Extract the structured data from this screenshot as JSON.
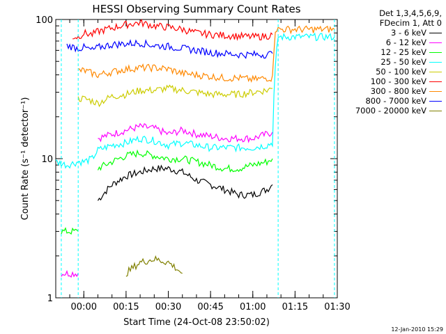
{
  "chart_data": {
    "type": "line",
    "title": "HESSI Observing Summary Count Rates",
    "xlabel": "Start Time (24-Oct-08 23:50:02)",
    "ylabel": "Count Rate (s⁻¹ detector⁻¹)",
    "y_scale": "log",
    "ylim": [
      1,
      100
    ],
    "xlim": [
      "23:50:02",
      "01:30:00"
    ],
    "x_ticks": [
      "00:00",
      "00:15",
      "00:30",
      "00:45",
      "01:00",
      "01:15",
      "01:30"
    ],
    "y_ticks": [
      "1",
      "10",
      "100"
    ],
    "legend_header": [
      "Det 1,3,4,5,6,9,",
      "FDecim 1, Att 0"
    ],
    "legend_position": "top-right, outside plot",
    "grid": false,
    "series": [
      {
        "name": "3 - 6 keV",
        "color": "#000000",
        "x": [
          "23:52",
          "23:58",
          "00:00",
          "00:05",
          "00:10",
          "00:15",
          "00:20",
          "00:25",
          "00:30",
          "00:35",
          "00:40",
          "00:45",
          "00:50",
          "00:55",
          "01:00",
          "01:05",
          "01:07"
        ],
        "y": [
          null,
          null,
          null,
          5.0,
          6.5,
          7.5,
          8.0,
          8.5,
          8.5,
          8.0,
          7.0,
          6.5,
          6.0,
          5.5,
          5.5,
          6.0,
          6.5
        ]
      },
      {
        "name": "6 - 12 keV",
        "color": "#ff00ff",
        "x": [
          "23:52",
          "23:55",
          "23:58",
          "00:00",
          "00:05",
          "00:10",
          "00:15",
          "00:20",
          "00:25",
          "00:30",
          "00:35",
          "00:40",
          "00:45",
          "00:50",
          "00:55",
          "01:00",
          "01:05",
          "01:07"
        ],
        "y": [
          1.5,
          1.5,
          1.5,
          null,
          14.0,
          15.0,
          16.0,
          17.0,
          16.5,
          15.0,
          16.0,
          15.0,
          14.5,
          14.0,
          14.0,
          14.0,
          15.0,
          15.5
        ]
      },
      {
        "name": "12 - 25 keV",
        "color": "#00ff00",
        "x": [
          "23:52",
          "23:55",
          "23:58",
          "00:00",
          "00:05",
          "00:10",
          "00:15",
          "00:20",
          "00:25",
          "00:30",
          "00:35",
          "00:40",
          "00:45",
          "00:50",
          "00:55",
          "01:00",
          "01:05",
          "01:07"
        ],
        "y": [
          3.0,
          3.0,
          3.0,
          null,
          8.5,
          9.5,
          10.5,
          11.0,
          10.5,
          10.0,
          10.0,
          9.5,
          9.0,
          8.5,
          8.5,
          9.0,
          9.5,
          10.0
        ]
      },
      {
        "name": "25 - 50 keV",
        "color": "#00ffff",
        "x": [
          "23:50",
          "23:54",
          "23:58",
          "00:00",
          "00:03",
          "00:05",
          "00:10",
          "00:15",
          "00:20",
          "00:25",
          "00:30",
          "00:35",
          "00:40",
          "00:45",
          "00:50",
          "00:55",
          "01:00",
          "01:05",
          "01:07",
          "01:09",
          "01:29"
        ],
        "y": [
          9.5,
          9.0,
          9.5,
          9.5,
          10.0,
          11.5,
          12.5,
          13.0,
          14.0,
          13.5,
          12.5,
          13.0,
          12.5,
          12.0,
          12.0,
          12.0,
          12.0,
          12.5,
          13.0,
          75,
          75
        ]
      },
      {
        "name": "50 - 100 keV",
        "color": "#cccc00",
        "x": [
          "23:58",
          "00:00",
          "00:03",
          "00:05",
          "00:10",
          "00:15",
          "00:20",
          "00:25",
          "00:30",
          "00:35",
          "00:40",
          "00:45",
          "00:50",
          "00:55",
          "01:00",
          "01:05",
          "01:07"
        ],
        "y": [
          27,
          27,
          26,
          25,
          28,
          29,
          31,
          31,
          32,
          31,
          30,
          29,
          29,
          29,
          30,
          31,
          32
        ]
      },
      {
        "name": "100 - 300 keV",
        "color": "#ff0000",
        "x": [
          "23:56",
          "23:58",
          "00:00",
          "00:03",
          "00:05",
          "00:10",
          "00:15",
          "00:20",
          "00:25",
          "00:30",
          "00:35",
          "00:40",
          "00:45",
          "00:50",
          "00:55",
          "01:00",
          "01:05",
          "01:07"
        ],
        "y": [
          75,
          75,
          80,
          78,
          82,
          87,
          92,
          95,
          90,
          88,
          85,
          80,
          78,
          77,
          76,
          75,
          76,
          78
        ]
      },
      {
        "name": "300 - 800 keV",
        "color": "#ff8800",
        "x": [
          "23:58",
          "00:00",
          "00:03",
          "00:05",
          "00:10",
          "00:15",
          "00:20",
          "00:25",
          "00:30",
          "00:35",
          "00:40",
          "00:45",
          "00:50",
          "00:55",
          "01:00",
          "01:05",
          "01:07",
          "01:08",
          "01:29"
        ],
        "y": [
          43,
          43,
          41,
          40,
          42,
          44,
          45,
          45,
          44,
          41,
          40,
          39,
          38,
          38,
          37,
          38,
          38,
          85,
          85
        ]
      },
      {
        "name": "800 - 7000 keV",
        "color": "#0000ff",
        "x": [
          "23:54",
          "23:58",
          "00:00",
          "00:03",
          "00:05",
          "00:10",
          "00:15",
          "00:20",
          "00:25",
          "00:30",
          "00:35",
          "00:40",
          "00:45",
          "00:50",
          "00:55",
          "01:00",
          "01:05",
          "01:07"
        ],
        "y": [
          65,
          62,
          63,
          60,
          63,
          66,
          67,
          68,
          65,
          64,
          62,
          60,
          58,
          57,
          56,
          56,
          56,
          57
        ]
      },
      {
        "name": "7000 - 20000 keV",
        "color": "#808000",
        "x": [
          "00:15",
          "00:20",
          "00:25",
          "00:30",
          "00:35"
        ],
        "y": [
          1.5,
          1.8,
          1.9,
          1.8,
          1.5
        ]
      }
    ]
  },
  "footer_timestamp": "12-Jan-2010 15:29"
}
